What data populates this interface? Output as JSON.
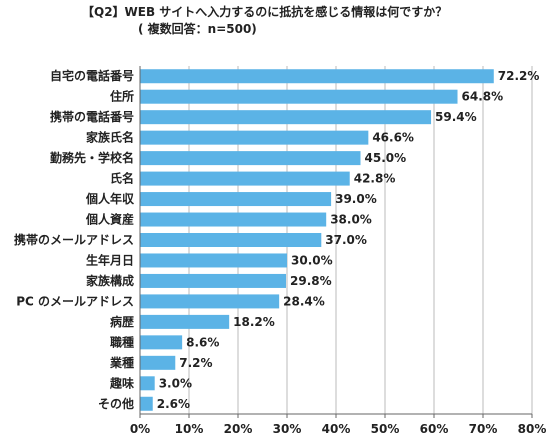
{
  "title_line1": "【Q2】WEB サイトへ入力するのに抵抗を感じる情報は何ですか？",
  "title_line2": "( 複数回答：n=500)",
  "chart_data": {
    "type": "bar",
    "orientation": "horizontal",
    "categories": [
      "自宅の電話番号",
      "住所",
      "携帯の電話番号",
      "家族氏名",
      "勤務先・学校名",
      "氏名",
      "個人年収",
      "個人資産",
      "携帯のメールアドレス",
      "生年月日",
      "家族構成",
      "PC のメールアドレス",
      "病歴",
      "職種",
      "業種",
      "趣味",
      "その他"
    ],
    "values": [
      72.2,
      64.8,
      59.4,
      46.6,
      45.0,
      42.8,
      39.0,
      38.0,
      37.0,
      30.0,
      29.8,
      28.4,
      18.2,
      8.6,
      7.2,
      3.0,
      2.6
    ],
    "value_labels": [
      "72.2%",
      "64.8%",
      "59.4%",
      "46.6%",
      "45.0%",
      "42.8%",
      "39.0%",
      "38.0%",
      "37.0%",
      "30.0%",
      "29.8%",
      "28.4%",
      "18.2%",
      "8.6%",
      "7.2%",
      "3.0%",
      "2.6%"
    ],
    "xlim": [
      0,
      80
    ],
    "x_ticks": [
      0,
      10,
      20,
      30,
      40,
      50,
      60,
      70,
      80
    ],
    "x_tick_labels": [
      "0%",
      "10%",
      "20%",
      "30%",
      "40%",
      "50%",
      "60%",
      "70%",
      "80%"
    ],
    "grid": true,
    "bar_color": "#5bb3e6",
    "grid_color": "#bbbbbb",
    "axis_color": "#666666"
  }
}
